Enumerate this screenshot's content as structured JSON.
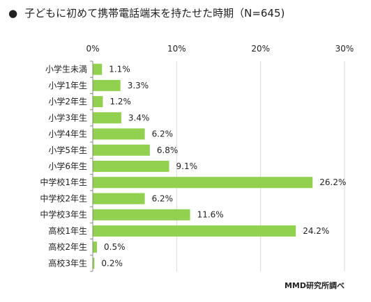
{
  "title_bullet": "●",
  "chart_data": {
    "type": "bar",
    "orientation": "horizontal",
    "title": "子どもに初めて携帯電話端末を持たせた時期（N=645)",
    "categories": [
      "小学生未満",
      "小学1年生",
      "小学2年生",
      "小学3年生",
      "小学4年生",
      "小学5年生",
      "小学6年生",
      "中学校1年生",
      "中学校2年生",
      "中学校3年生",
      "高校1年生",
      "高校2年生",
      "高校3年生"
    ],
    "values": [
      1.1,
      3.3,
      1.2,
      3.4,
      6.2,
      6.8,
      9.1,
      26.2,
      6.2,
      11.6,
      24.2,
      0.5,
      0.2
    ],
    "value_labels": [
      "1.1%",
      "3.3%",
      "1.2%",
      "3.4%",
      "6.2%",
      "6.8%",
      "9.1%",
      "26.2%",
      "6.2%",
      "11.6%",
      "24.2%",
      "0.5%",
      "0.2%"
    ],
    "xlim": [
      0,
      30
    ],
    "xticks": [
      0,
      10,
      20,
      30
    ],
    "xtick_labels": [
      "0%",
      "10%",
      "20%",
      "30%"
    ],
    "x_axis_position": "top",
    "grid": true,
    "bar_color": "#92d050",
    "grid_color": "#d9d9d9"
  },
  "source": "MMD研究所調べ"
}
